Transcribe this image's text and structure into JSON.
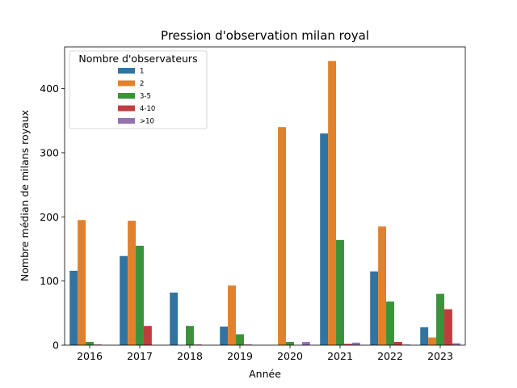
{
  "chart_data": {
    "type": "bar",
    "title": "Pression d'observation milan royal",
    "xlabel": "Année",
    "ylabel": "Nombre médian de milans royaux",
    "categories": [
      "2016",
      "2017",
      "2018",
      "2019",
      "2020",
      "2021",
      "2022",
      "2023"
    ],
    "ylim": [
      0,
      465
    ],
    "yticks": [
      0,
      100,
      200,
      300,
      400
    ],
    "grid": false,
    "legend": {
      "title": "Nombre d'observateurs",
      "placement": "top-left"
    },
    "series": [
      {
        "name": "1",
        "color": "#3274a1",
        "values": [
          116,
          139,
          82,
          29,
          0,
          330,
          115,
          28
        ]
      },
      {
        "name": "2",
        "color": "#e1812c",
        "values": [
          195,
          194,
          0,
          93,
          340,
          443,
          185,
          12
        ]
      },
      {
        "name": "3-5",
        "color": "#3a923a",
        "values": [
          5,
          155,
          30,
          17,
          5,
          164,
          68,
          80
        ]
      },
      {
        "name": "4-10",
        "color": "#c03d3e",
        "values": [
          1,
          30,
          1,
          1,
          0,
          2,
          5,
          56
        ]
      },
      {
        "name": ">10",
        "color": "#9372b2",
        "values": [
          0,
          0,
          0,
          0,
          5,
          4,
          1,
          3
        ]
      }
    ]
  }
}
